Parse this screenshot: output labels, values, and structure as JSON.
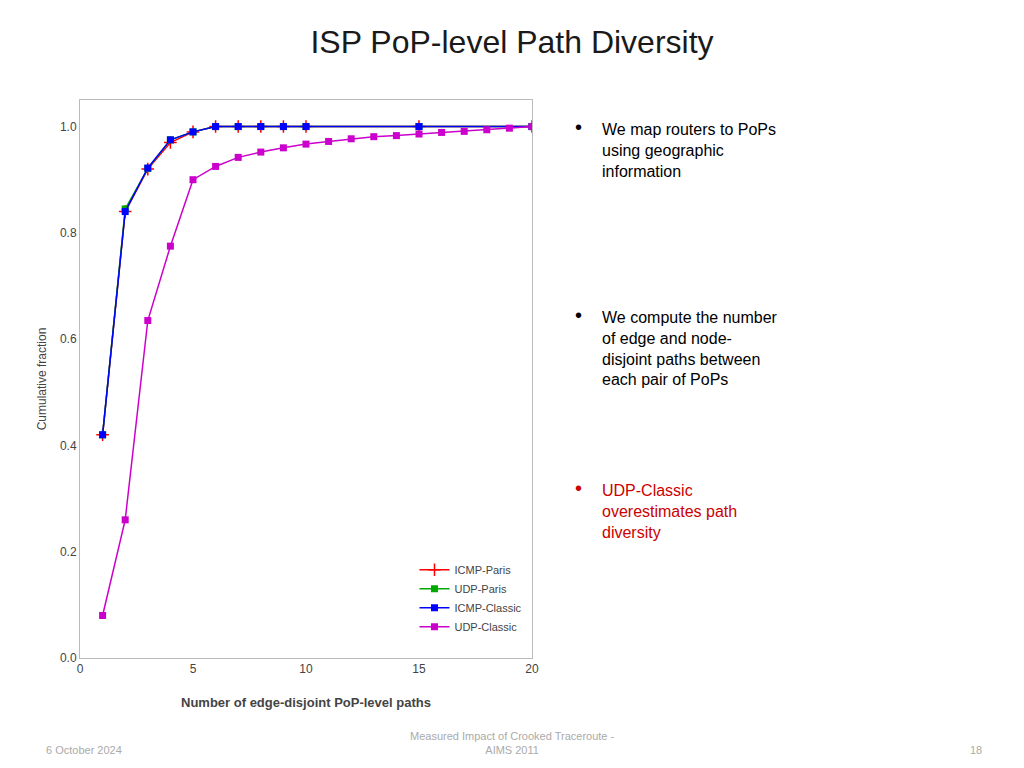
{
  "chart_data": {
    "type": "line",
    "title": "ISP PoP-level Path Diversity",
    "x_label": "Number of edge-disjoint PoP-level paths",
    "y_label": "Cumulative fraction",
    "xlim": [
      0,
      20
    ],
    "ylim": [
      0,
      1.05
    ],
    "xticks": [
      0,
      5,
      10,
      15,
      20
    ],
    "yticks": [
      {
        "value": 0,
        "label": "0.0"
      },
      {
        "value": 0.2,
        "label": "0.2"
      },
      {
        "value": 0.4,
        "label": "0.4"
      },
      {
        "value": 0.6,
        "label": "0.6"
      },
      {
        "value": 0.8,
        "label": "0.8"
      },
      {
        "value": 1,
        "label": "1.0"
      }
    ],
    "grid": false,
    "legend": "lower right",
    "series": [
      {
        "name": "ICMP-Paris",
        "color": "#ff0000",
        "marker": "plus",
        "x": [
          1,
          2,
          3,
          4,
          5,
          6,
          7,
          8,
          9,
          10,
          15,
          20
        ],
        "values": [
          0.42,
          0.84,
          0.92,
          0.97,
          0.99,
          1.0,
          1.0,
          1.0,
          1.0,
          1.0,
          1.0,
          1.0
        ]
      },
      {
        "name": "UDP-Paris",
        "color": "#00aa00",
        "marker": "square",
        "x": [
          1,
          2,
          3,
          4,
          5,
          6,
          7,
          8,
          9,
          10,
          15,
          20
        ],
        "values": [
          0.42,
          0.845,
          0.921,
          0.975,
          0.99,
          1.0,
          1.0,
          1.0,
          1.0,
          1.0,
          1.0,
          1.0
        ]
      },
      {
        "name": "ICMP-Classic",
        "color": "#0000ff",
        "marker": "square",
        "x": [
          1,
          2,
          3,
          4,
          5,
          6,
          7,
          8,
          9,
          10,
          15,
          20
        ],
        "values": [
          0.42,
          0.84,
          0.922,
          0.975,
          0.99,
          1.0,
          1.0,
          1.0,
          1.0,
          1.0,
          1.0,
          1.0
        ]
      },
      {
        "name": "UDP-Classic",
        "color": "#cc00cc",
        "marker": "square",
        "x": [
          1,
          2,
          3,
          4,
          5,
          6,
          7,
          8,
          9,
          10,
          11,
          12,
          13,
          14,
          15,
          16,
          17,
          18,
          19,
          20
        ],
        "values": [
          0.08,
          0.26,
          0.635,
          0.775,
          0.9,
          0.925,
          0.942,
          0.952,
          0.96,
          0.967,
          0.972,
          0.977,
          0.981,
          0.983,
          0.986,
          0.989,
          0.991,
          0.994,
          0.997,
          1.0
        ]
      }
    ],
    "annotations": [
      {
        "text": "6 October 2024",
        "color": "#aaaaaa"
      },
      {
        "text": "Measured Impact of Crooked Traceroute -\nAIMS 2011",
        "color": "#aaaaaa"
      },
      {
        "text": "18",
        "color": "#aaaaaa"
      },
      {
        "text": "•",
        "color": "#000000"
      },
      {
        "text": "We map routers to PoPs\nusing geographic\ninformation",
        "color": "#000000"
      },
      {
        "text": "•",
        "color": "#000000"
      },
      {
        "text": "We compute the number\nof edge and node-\ndisjoint paths between\neach pair of PoPs",
        "color": "#000000"
      },
      {
        "text": "•",
        "color": "#cc0000"
      },
      {
        "text": "UDP-Classic\noverestimates path\ndiversity",
        "color": "#cc0000"
      }
    ]
  }
}
